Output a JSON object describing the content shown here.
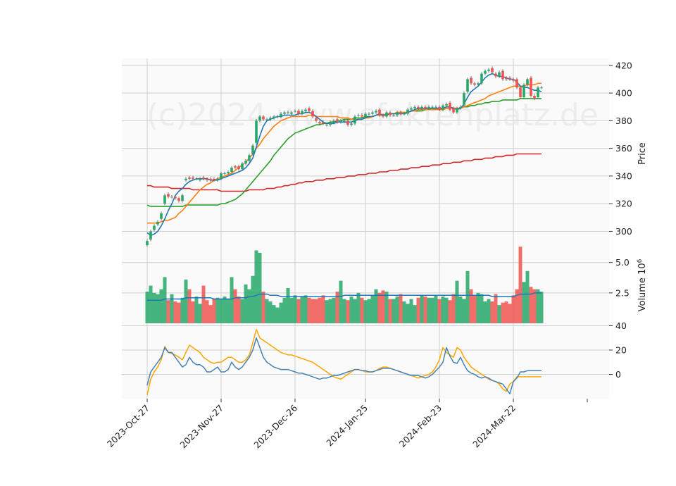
{
  "watermark": "(c)2024 www.sfaktenplatz.de",
  "colors": {
    "up": "#26a769",
    "down": "#ef5350",
    "sma_fast": "#1f77b4",
    "sma_20": "#ff7f0e",
    "sma_50": "#2ca02c",
    "sma_200": "#d62728",
    "osc_fast": "#4682b4",
    "osc_slow": "#ffa500",
    "panel_bg": "#fafafa",
    "grid": "#d0d0d0"
  },
  "chart_data": [
    {
      "type": "candlestick",
      "panel": "price",
      "ylabel": "Price",
      "ylim": [
        288,
        425
      ],
      "yticks": [
        300,
        320,
        340,
        360,
        380,
        400,
        420
      ],
      "x_tick_labels": [
        "2023-Oct-27",
        "2023-Nov-27",
        "2023-Dec-26",
        "2024-Jan-25",
        "2024-Feb-23",
        "2024-Mar-22"
      ],
      "x_tick_index": [
        0,
        21,
        42,
        62,
        83,
        104
      ],
      "close": [
        293,
        300,
        304,
        307,
        313,
        326,
        325,
        325,
        324,
        322,
        326,
        338,
        338,
        338,
        338,
        338,
        338,
        337,
        337,
        337,
        338,
        342,
        342,
        343,
        346,
        346,
        345,
        349,
        351,
        355,
        362,
        380,
        383,
        381,
        381,
        382,
        383,
        383,
        385,
        386,
        386,
        386,
        387,
        385,
        387,
        388,
        387,
        383,
        380,
        378,
        378,
        377,
        379,
        380,
        379,
        380,
        380,
        377,
        378,
        383,
        384,
        383,
        385,
        385,
        386,
        387,
        384,
        383,
        386,
        384,
        384,
        386,
        385,
        385,
        388,
        389,
        390,
        389,
        390,
        389,
        390,
        390,
        390,
        388,
        391,
        392,
        388,
        386,
        389,
        390,
        400,
        410,
        407,
        406,
        407,
        414,
        416,
        417,
        415,
        412,
        415,
        410,
        410,
        410,
        409,
        404,
        397,
        406,
        410,
        398,
        396,
        404,
        404
      ],
      "open": [
        290,
        294,
        301,
        305,
        309,
        320,
        327,
        325,
        325,
        324,
        322,
        337,
        339,
        339,
        338,
        337,
        339,
        338,
        338,
        338,
        337,
        338,
        342,
        342,
        343,
        347,
        347,
        345,
        349,
        351,
        356,
        364,
        380,
        383,
        381,
        381,
        382,
        383,
        383,
        385,
        386,
        385,
        387,
        387,
        385,
        387,
        389,
        387,
        382,
        379,
        379,
        377,
        377,
        379,
        381,
        379,
        380,
        380,
        377,
        378,
        384,
        384,
        383,
        385,
        385,
        386,
        388,
        384,
        383,
        386,
        384,
        384,
        386,
        385,
        385,
        388,
        389,
        390,
        389,
        390,
        389,
        390,
        390,
        390,
        388,
        391,
        393,
        389,
        386,
        389,
        391,
        401,
        411,
        407,
        406,
        407,
        414,
        416,
        418,
        414,
        412,
        416,
        411,
        411,
        410,
        410,
        404,
        397,
        406,
        411,
        398,
        397,
        404
      ],
      "sma_fast": [
        299,
        297,
        298,
        300,
        304,
        309,
        315,
        320,
        326,
        329,
        331,
        334,
        336,
        337,
        338,
        338,
        338,
        338,
        337,
        337,
        337,
        338,
        339,
        340,
        341,
        342,
        343,
        344,
        346,
        349,
        353,
        361,
        369,
        376,
        380,
        381,
        382,
        383,
        383,
        384,
        384,
        384,
        384,
        385,
        385,
        386,
        386,
        385,
        383,
        381,
        379,
        378,
        378,
        378,
        379,
        379,
        379,
        379,
        379,
        380,
        381,
        381,
        382,
        383,
        383,
        384,
        385,
        384,
        384,
        385,
        385,
        385,
        385,
        385,
        386,
        387,
        388,
        389,
        389,
        389,
        389,
        389,
        389,
        389,
        389,
        390,
        390,
        389,
        388,
        389,
        392,
        397,
        401,
        403,
        405,
        408,
        411,
        413,
        414,
        413,
        412,
        412,
        411,
        410,
        410,
        408,
        405,
        404,
        404,
        403,
        402,
        402,
        401
      ],
      "sma_20": [
        306,
        306,
        306,
        306,
        307,
        308,
        308,
        309,
        310,
        313,
        315,
        318,
        321,
        324,
        327,
        330,
        332,
        334,
        335,
        337,
        338,
        339,
        340,
        341,
        342,
        344,
        346,
        348,
        350,
        353,
        356,
        360,
        363,
        367,
        370,
        373,
        376,
        378,
        380,
        381,
        382,
        383,
        383,
        383,
        383,
        383,
        384,
        384,
        383,
        383,
        383,
        383,
        383,
        383,
        383,
        382,
        382,
        382,
        381,
        381,
        381,
        381,
        382,
        382,
        383,
        384,
        384,
        384,
        385,
        385,
        385,
        386,
        386,
        386,
        386,
        387,
        387,
        388,
        388,
        388,
        388,
        388,
        388,
        388,
        388,
        389,
        389,
        389,
        389,
        389,
        390,
        391,
        392,
        393,
        394,
        395,
        396,
        398,
        399,
        400,
        401,
        402,
        403,
        404,
        405,
        405,
        405,
        405,
        406,
        406,
        406,
        407,
        407
      ],
      "sma_50": [
        319,
        318,
        318,
        318,
        318,
        318,
        318,
        318,
        318,
        318,
        318,
        319,
        319,
        319,
        319,
        319,
        319,
        319,
        319,
        319,
        319,
        320,
        320,
        321,
        322,
        323,
        325,
        327,
        330,
        333,
        336,
        339,
        342,
        345,
        348,
        351,
        355,
        358,
        361,
        364,
        367,
        369,
        371,
        372,
        373,
        374,
        375,
        376,
        377,
        377,
        378,
        378,
        379,
        379,
        380,
        380,
        381,
        381,
        381,
        382,
        382,
        382,
        383,
        383,
        383,
        384,
        384,
        384,
        385,
        385,
        385,
        386,
        386,
        386,
        386,
        387,
        387,
        387,
        387,
        388,
        388,
        388,
        388,
        388,
        388,
        389,
        389,
        389,
        389,
        389,
        390,
        390,
        391,
        391,
        392,
        392,
        393,
        393,
        394,
        394,
        394,
        395,
        395,
        395,
        395,
        395,
        396,
        396,
        396,
        396,
        396,
        396,
        396
      ],
      "sma_200": [
        333,
        333,
        332,
        332,
        332,
        332,
        332,
        331,
        331,
        331,
        331,
        331,
        331,
        330,
        330,
        330,
        330,
        330,
        330,
        330,
        330,
        329,
        329,
        329,
        329,
        329,
        329,
        329,
        329,
        330,
        330,
        330,
        330,
        330,
        331,
        331,
        331,
        332,
        332,
        333,
        333,
        334,
        334,
        335,
        335,
        336,
        336,
        336,
        337,
        337,
        337,
        338,
        338,
        338,
        339,
        339,
        339,
        340,
        340,
        340,
        341,
        341,
        341,
        342,
        342,
        342,
        343,
        343,
        343,
        344,
        344,
        344,
        345,
        345,
        345,
        346,
        346,
        346,
        347,
        347,
        347,
        348,
        348,
        348,
        349,
        349,
        349,
        350,
        350,
        350,
        351,
        351,
        351,
        352,
        352,
        352,
        353,
        353,
        353,
        354,
        354,
        354,
        355,
        355,
        355,
        356,
        356,
        356,
        356,
        356,
        356,
        356,
        356
      ]
    },
    {
      "type": "bar",
      "panel": "volume",
      "ylabel": "Volume  10",
      "ylabel_exponent": "6",
      "ylim": [
        0,
        6.2
      ],
      "yticks": [
        2.5,
        5.0
      ],
      "ytick_labels": [
        "2.5",
        "5.0"
      ],
      "values": [
        2.6,
        3.1,
        2.5,
        2.4,
        2.8,
        3.8,
        1.9,
        2.4,
        1.8,
        1.7,
        2.1,
        3.6,
        2.8,
        1.8,
        2.2,
        1.6,
        3.1,
        1.9,
        1.5,
        2.0,
        2.1,
        2.0,
        2.2,
        2.0,
        3.8,
        2.8,
        2.2,
        2.0,
        3.2,
        2.8,
        3.9,
        6.0,
        5.8,
        2.6,
        2.0,
        1.8,
        1.5,
        1.3,
        1.7,
        2.1,
        2.9,
        2.1,
        2.3,
        2.0,
        2.2,
        2.3,
        2.1,
        2.0,
        2.0,
        2.1,
        2.3,
        1.9,
        2.0,
        2.1,
        2.6,
        3.5,
        2.0,
        1.9,
        2.2,
        2.0,
        2.5,
        2.1,
        1.9,
        2.0,
        2.3,
        2.8,
        2.5,
        2.7,
        2.6,
        2.0,
        2.0,
        2.2,
        2.4,
        1.8,
        1.6,
        2.0,
        1.5,
        2.1,
        2.3,
        2.2,
        2.1,
        2.1,
        2.3,
        2.0,
        2.2,
        2.1,
        1.9,
        2.4,
        3.5,
        2.2,
        2.0,
        4.3,
        2.8,
        2.3,
        2.5,
        2.4,
        1.8,
        2.0,
        1.8,
        2.4,
        1.5,
        1.7,
        1.8,
        1.6,
        2.3,
        2.8,
        6.3,
        3.4,
        4.3,
        3.0,
        2.8,
        2.8,
        2.6
      ],
      "sma": [
        1.9,
        1.9,
        1.9,
        1.9,
        1.9,
        2.0,
        2.0,
        2.0,
        2.0,
        2.0,
        2.0,
        2.1,
        2.1,
        2.1,
        2.1,
        2.1,
        2.1,
        2.1,
        2.1,
        2.0,
        2.0,
        2.0,
        2.0,
        2.0,
        2.0,
        2.1,
        2.1,
        2.1,
        2.1,
        2.2,
        2.2,
        2.3,
        2.4,
        2.4,
        2.4,
        2.3,
        2.3,
        2.3,
        2.2,
        2.2,
        2.2,
        2.2,
        2.2,
        2.2,
        2.2,
        2.2,
        2.2,
        2.2,
        2.2,
        2.2,
        2.2,
        2.2,
        2.2,
        2.2,
        2.2,
        2.2,
        2.3,
        2.3,
        2.3,
        2.3,
        2.3,
        2.3,
        2.3,
        2.3,
        2.3,
        2.3,
        2.3,
        2.3,
        2.3,
        2.3,
        2.3,
        2.3,
        2.3,
        2.3,
        2.3,
        2.3,
        2.3,
        2.3,
        2.3,
        2.3,
        2.3,
        2.3,
        2.3,
        2.3,
        2.3,
        2.3,
        2.3,
        2.3,
        2.3,
        2.3,
        2.3,
        2.3,
        2.3,
        2.3,
        2.3,
        2.3,
        2.3,
        2.3,
        2.2,
        2.2,
        2.2,
        2.2,
        2.2,
        2.2,
        2.2,
        2.3,
        2.4,
        2.4,
        2.4,
        2.4,
        2.5,
        2.5,
        2.5
      ]
    },
    {
      "type": "line",
      "panel": "oscillator",
      "ylim": [
        -20,
        42
      ],
      "yticks": [
        0,
        20,
        40
      ],
      "series": [
        {
          "values": [
            -9,
            2,
            6,
            10,
            14,
            22,
            18,
            18,
            14,
            10,
            6,
            8,
            14,
            10,
            8,
            8,
            6,
            2,
            2,
            4,
            6,
            2,
            2,
            4,
            10,
            6,
            4,
            6,
            10,
            14,
            20,
            30,
            22,
            14,
            10,
            8,
            6,
            5,
            4,
            4,
            4,
            3,
            2,
            1,
            1,
            0,
            -1,
            -2,
            -3,
            -4,
            -3,
            -3,
            -2,
            -1,
            -1,
            0,
            1,
            2,
            3,
            4,
            4,
            3,
            3,
            2,
            2,
            3,
            4,
            5,
            5,
            5,
            4,
            3,
            2,
            1,
            0,
            -1,
            -1,
            -1,
            -2,
            -3,
            -2,
            0,
            3,
            6,
            10,
            22,
            15,
            10,
            9,
            14,
            8,
            3,
            1,
            0,
            -2,
            -3,
            -2,
            -3,
            -5,
            -6,
            -7,
            -8,
            -12,
            -16,
            -6,
            -3,
            2,
            2,
            3,
            3,
            3,
            3,
            3
          ]
        },
        {
          "values": [
            -17,
            -4,
            2,
            6,
            12,
            23,
            18,
            17,
            16,
            14,
            12,
            18,
            24,
            22,
            20,
            18,
            14,
            12,
            10,
            9,
            10,
            10,
            12,
            14,
            14,
            12,
            10,
            10,
            12,
            16,
            26,
            37,
            30,
            28,
            26,
            24,
            22,
            20,
            18,
            17,
            16,
            16,
            15,
            14,
            13,
            12,
            11,
            10,
            8,
            6,
            4,
            2,
            0,
            -2,
            -3,
            -4,
            -2,
            0,
            2,
            4,
            4,
            3,
            2,
            2,
            2,
            3,
            5,
            6,
            6,
            5,
            4,
            3,
            2,
            1,
            0,
            -1,
            -2,
            -3,
            -2,
            -1,
            0,
            2,
            6,
            12,
            22,
            18,
            16,
            14,
            22,
            20,
            14,
            10,
            6,
            4,
            2,
            0,
            -2,
            -4,
            -5,
            -6,
            -8,
            -12,
            -14,
            -8,
            -6,
            -2,
            -2,
            -2,
            -2,
            -2,
            -2,
            -2,
            -2
          ]
        }
      ]
    }
  ]
}
